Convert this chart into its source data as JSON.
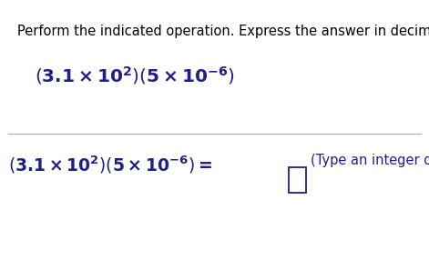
{
  "instruction": "Perform the indicated operation. Express the answer in decimal notation.",
  "hint_text": "(Type an integer or a decimal.)",
  "text_color_instruction": "#000000",
  "text_color_formula": "#1f1f8c",
  "background_color": "#ffffff",
  "divider_color": "#aaaaaa",
  "instruction_fontsize": 10.5,
  "formula_fontsize": 14.5,
  "formula2_fontsize": 13.5,
  "hint_fontsize": 10.5
}
